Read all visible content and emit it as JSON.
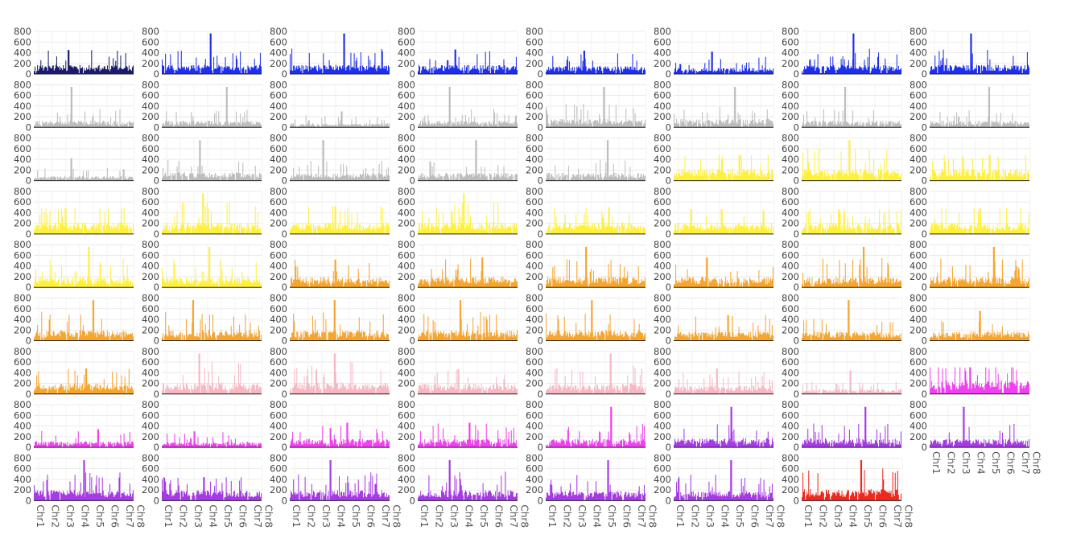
{
  "chart_data": {
    "type": "bar",
    "layout": "small-multiples grid, 9 rows x 8 columns, 71 panels",
    "title": "",
    "xlabel": "",
    "ylabel": "",
    "ylim": [
      0,
      800
    ],
    "y_ticks": [
      "0",
      "200",
      "400",
      "600",
      "800"
    ],
    "x_tick_labels": [
      "Chr1",
      "Chr2",
      "Chr3",
      "Chr4",
      "Chr5",
      "Chr6",
      "Chr7",
      "Chr8"
    ],
    "grid": true,
    "legend": "none",
    "colors": {
      "navy": "#1a1a6e",
      "blue": "#1f2ff0",
      "gray": "#bdbdbd",
      "yellow": "#fff03c",
      "orange": "#f7a52c",
      "pink": "#f7b8c4",
      "magenta": "#f040f0",
      "purple": "#a63ae6",
      "red": "#f0281e"
    },
    "panel_count": 71,
    "panel_colors": [
      [
        "navy",
        "blue",
        "blue",
        "blue",
        "blue",
        "blue",
        "blue",
        "blue"
      ],
      [
        "gray",
        "gray",
        "gray",
        "gray",
        "gray",
        "gray",
        "gray",
        "gray"
      ],
      [
        "gray",
        "gray",
        "gray",
        "gray",
        "gray",
        "yellow",
        "yellow",
        "yellow"
      ],
      [
        "yellow",
        "yellow",
        "yellow",
        "yellow",
        "yellow",
        "yellow",
        "yellow",
        "yellow"
      ],
      [
        "yellow",
        "yellow",
        "orange",
        "orange",
        "orange",
        "orange",
        "orange",
        "orange"
      ],
      [
        "orange",
        "orange",
        "orange",
        "orange",
        "orange",
        "orange",
        "orange",
        "orange"
      ],
      [
        "orange",
        "pink",
        "pink",
        "pink",
        "pink",
        "pink",
        "pink",
        "magenta"
      ],
      [
        "magenta",
        "magenta",
        "magenta",
        "magenta",
        "magenta",
        "purple",
        "purple",
        "purple"
      ],
      [
        "purple",
        "purple",
        "purple",
        "purple",
        "purple",
        "purple",
        "red"
      ]
    ],
    "panel_peaks": [
      [
        450,
        760,
        760,
        460,
        440,
        420,
        760,
        760
      ],
      [
        760,
        760,
        300,
        760,
        760,
        760,
        760,
        760
      ],
      [
        420,
        760,
        760,
        760,
        760,
        480,
        760,
        480
      ],
      [
        480,
        760,
        520,
        760,
        500,
        460,
        460,
        480
      ],
      [
        760,
        760,
        520,
        560,
        760,
        560,
        760,
        760
      ],
      [
        760,
        760,
        760,
        760,
        760,
        480,
        760,
        560
      ],
      [
        480,
        760,
        760,
        460,
        760,
        480,
        440,
        500
      ],
      [
        340,
        300,
        460,
        460,
        760,
        760,
        760,
        760
      ],
      [
        760,
        440,
        760,
        760,
        760,
        760,
        760
      ]
    ],
    "panel_levels": [
      [
        150,
        150,
        150,
        150,
        130,
        100,
        150,
        150
      ],
      [
        110,
        110,
        70,
        110,
        140,
        140,
        110,
        110
      ],
      [
        80,
        140,
        120,
        130,
        130,
        200,
        200,
        200
      ],
      [
        190,
        190,
        190,
        190,
        190,
        190,
        180,
        180
      ],
      [
        170,
        170,
        170,
        170,
        170,
        170,
        170,
        170
      ],
      [
        170,
        170,
        170,
        170,
        170,
        150,
        150,
        150
      ],
      [
        170,
        190,
        190,
        170,
        170,
        140,
        80,
        220
      ],
      [
        100,
        90,
        140,
        140,
        140,
        150,
        150,
        140
      ],
      [
        170,
        170,
        170,
        170,
        160,
        160,
        190
      ]
    ]
  }
}
